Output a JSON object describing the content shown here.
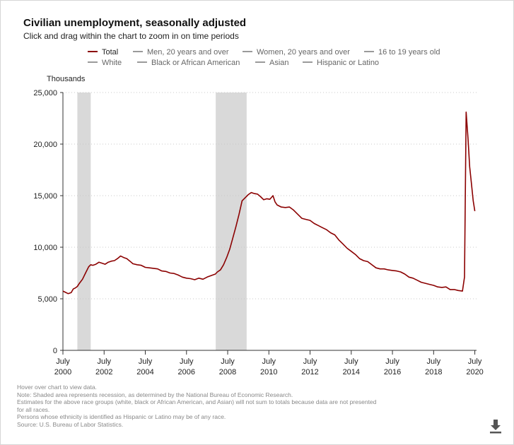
{
  "title": "Civilian unemployment, seasonally adjusted",
  "subtitle": "Click and drag within the chart to zoom in on time periods",
  "unit_label": "Thousands",
  "legend": [
    {
      "label": "Total",
      "color": "#8b0000",
      "active": true
    },
    {
      "label": "Men, 20 years and over",
      "color": "#9a9a9a",
      "active": false
    },
    {
      "label": "Women, 20 years and over",
      "color": "#9a9a9a",
      "active": false
    },
    {
      "label": "16 to 19 years old",
      "color": "#9a9a9a",
      "active": false
    },
    {
      "label": "White",
      "color": "#9a9a9a",
      "active": false
    },
    {
      "label": "Black or African American",
      "color": "#9a9a9a",
      "active": false
    },
    {
      "label": "Asian",
      "color": "#9a9a9a",
      "active": false
    },
    {
      "label": "Hispanic or Latino",
      "color": "#9a9a9a",
      "active": false
    }
  ],
  "notes": [
    "Hover over chart to view data.",
    "Note: Shaded area represents recession, as determined by the National Bureau of Economic Research.",
    "Estimates for the above race groups (white, black or African American, and Asian) will not sum to totals because data are not presented",
    "for all races.",
    "Persons whose ethnicity is identified as Hispanic or Latino may be of any race.",
    "Source: U.S. Bureau of Labor Statistics."
  ],
  "chart_data": {
    "type": "line",
    "title": "Civilian unemployment, seasonally adjusted",
    "ylabel": "Thousands",
    "xlabel": "",
    "ylim": [
      0,
      25000
    ],
    "xlim": [
      2000.5,
      2020.583
    ],
    "yticks": [
      0,
      5000,
      10000,
      15000,
      20000,
      25000
    ],
    "ytick_labels": [
      "0",
      "5,000",
      "10,000",
      "15,000",
      "20,000",
      "25,000"
    ],
    "xticks": [
      {
        "value": 2000.5,
        "top": "July",
        "bottom": "2000"
      },
      {
        "value": 2002.5,
        "top": "July",
        "bottom": "2002"
      },
      {
        "value": 2004.5,
        "top": "July",
        "bottom": "2004"
      },
      {
        "value": 2006.5,
        "top": "July",
        "bottom": "2006"
      },
      {
        "value": 2008.5,
        "top": "July",
        "bottom": "2008"
      },
      {
        "value": 2010.5,
        "top": "July",
        "bottom": "2010"
      },
      {
        "value": 2012.5,
        "top": "July",
        "bottom": "2012"
      },
      {
        "value": 2014.5,
        "top": "July",
        "bottom": "2014"
      },
      {
        "value": 2016.5,
        "top": "July",
        "bottom": "2016"
      },
      {
        "value": 2018.5,
        "top": "July",
        "bottom": "2018"
      },
      {
        "value": 2020.5,
        "top": "July",
        "bottom": "2020"
      }
    ],
    "recessions": [
      [
        2001.2,
        2001.85
      ],
      [
        2007.92,
        2009.42
      ]
    ],
    "grid": true,
    "series": [
      {
        "name": "Total",
        "color": "#8b0000",
        "x": [
          2000.5,
          2000.6,
          2000.75,
          2000.9,
          2001.0,
          2001.1,
          2001.2,
          2001.3,
          2001.45,
          2001.6,
          2001.75,
          2001.85,
          2001.95,
          2002.1,
          2002.25,
          2002.4,
          2002.55,
          2002.7,
          2002.85,
          2003.0,
          2003.15,
          2003.3,
          2003.45,
          2003.6,
          2003.75,
          2003.9,
          2004.1,
          2004.3,
          2004.5,
          2004.7,
          2004.9,
          2005.1,
          2005.3,
          2005.5,
          2005.7,
          2005.9,
          2006.1,
          2006.3,
          2006.5,
          2006.7,
          2006.9,
          2007.1,
          2007.3,
          2007.5,
          2007.7,
          2007.9,
          2008.0,
          2008.15,
          2008.3,
          2008.45,
          2008.6,
          2008.75,
          2008.9,
          2009.05,
          2009.2,
          2009.35,
          2009.5,
          2009.65,
          2009.8,
          2009.95,
          2010.1,
          2010.25,
          2010.4,
          2010.55,
          2010.7,
          2010.8,
          2010.9,
          2011.1,
          2011.3,
          2011.5,
          2011.7,
          2011.9,
          2012.1,
          2012.3,
          2012.5,
          2012.7,
          2012.9,
          2013.1,
          2013.3,
          2013.5,
          2013.7,
          2013.9,
          2014.1,
          2014.3,
          2014.5,
          2014.7,
          2014.9,
          2015.1,
          2015.3,
          2015.5,
          2015.7,
          2015.9,
          2016.1,
          2016.3,
          2016.5,
          2016.7,
          2016.9,
          2017.1,
          2017.3,
          2017.5,
          2017.7,
          2017.9,
          2018.1,
          2018.3,
          2018.5,
          2018.7,
          2018.9,
          2019.1,
          2019.3,
          2019.5,
          2019.7,
          2019.9,
          2020.0,
          2020.08,
          2020.17,
          2020.25,
          2020.33,
          2020.42,
          2020.5
        ],
        "values": [
          5750,
          5650,
          5500,
          5600,
          5950,
          6050,
          6200,
          6500,
          6900,
          7500,
          8100,
          8300,
          8250,
          8350,
          8550,
          8450,
          8350,
          8550,
          8650,
          8700,
          8900,
          9150,
          9000,
          8900,
          8650,
          8400,
          8300,
          8250,
          8050,
          8000,
          7950,
          7900,
          7700,
          7650,
          7500,
          7450,
          7300,
          7100,
          7000,
          6950,
          6850,
          7000,
          6900,
          7100,
          7250,
          7400,
          7600,
          7800,
          8300,
          9000,
          9800,
          10900,
          12000,
          13200,
          14500,
          14800,
          15100,
          15300,
          15200,
          15150,
          14900,
          14600,
          14700,
          14650,
          15000,
          14400,
          14100,
          13900,
          13850,
          13900,
          13600,
          13200,
          12800,
          12700,
          12600,
          12300,
          12100,
          11900,
          11700,
          11400,
          11200,
          10700,
          10300,
          9900,
          9600,
          9300,
          8900,
          8700,
          8600,
          8300,
          8000,
          7900,
          7900,
          7800,
          7750,
          7700,
          7600,
          7400,
          7100,
          7000,
          6800,
          6600,
          6500,
          6400,
          6300,
          6150,
          6100,
          6150,
          5900,
          5900,
          5800,
          5750,
          7100,
          23100,
          20500,
          17800,
          16300,
          14500,
          13500
        ]
      }
    ]
  }
}
